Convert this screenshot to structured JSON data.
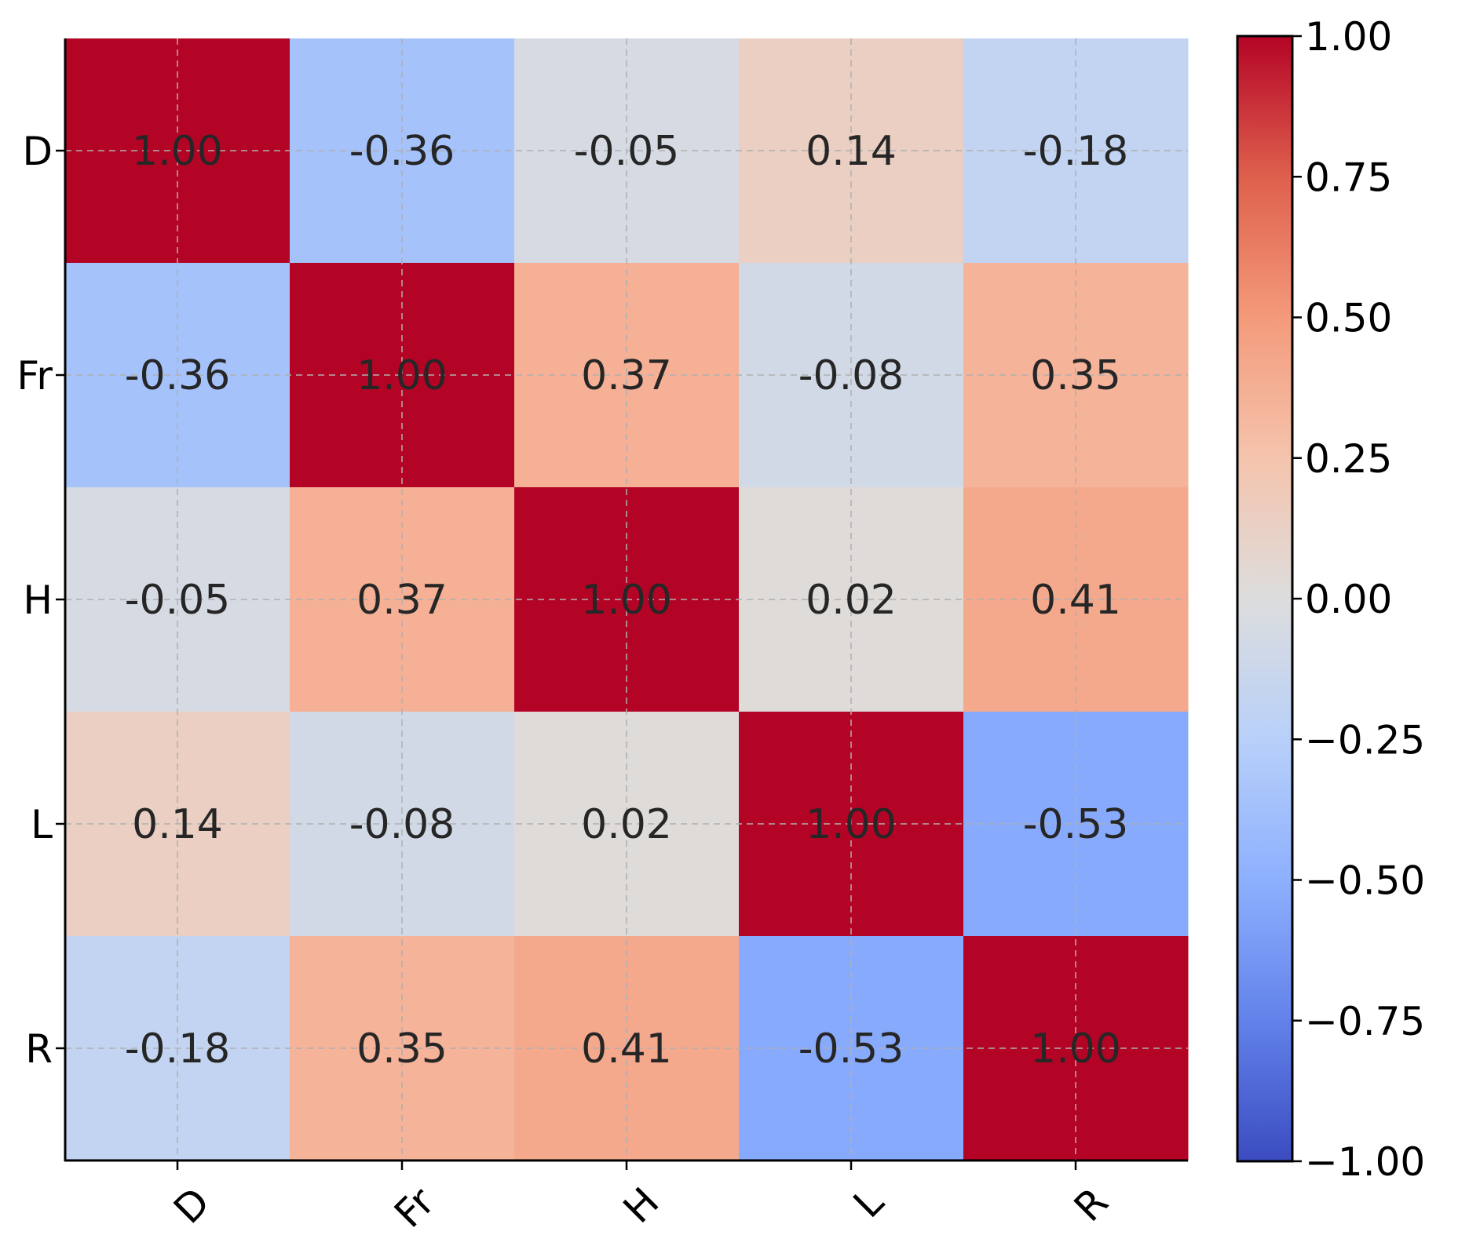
{
  "chart_data": {
    "type": "heatmap",
    "title": "",
    "xlabel": "",
    "ylabel": "",
    "row_labels": [
      "D",
      "Fr",
      "H",
      "L",
      "R"
    ],
    "col_labels": [
      "D",
      "Fr",
      "H",
      "L",
      "R"
    ],
    "values": [
      [
        1.0,
        -0.36,
        -0.05,
        0.14,
        -0.18
      ],
      [
        -0.36,
        1.0,
        0.37,
        -0.08,
        0.35
      ],
      [
        -0.05,
        0.37,
        1.0,
        0.02,
        0.41
      ],
      [
        0.14,
        -0.08,
        0.02,
        1.0,
        -0.53
      ],
      [
        -0.18,
        0.35,
        0.41,
        -0.53,
        1.0
      ]
    ],
    "value_labels": [
      [
        "1.00",
        "-0.36",
        "-0.05",
        "0.14",
        "-0.18"
      ],
      [
        "-0.36",
        "1.00",
        "0.37",
        "-0.08",
        "0.35"
      ],
      [
        "-0.05",
        "0.37",
        "1.00",
        "0.02",
        "0.41"
      ],
      [
        "0.14",
        "-0.08",
        "0.02",
        "1.00",
        "-0.53"
      ],
      [
        "-0.18",
        "0.35",
        "0.41",
        "-0.53",
        "1.00"
      ]
    ],
    "colormap": "coolwarm",
    "color_range": [
      -1.0,
      1.0
    ],
    "colorbar_ticks": [
      1.0,
      0.75,
      0.5,
      0.25,
      0.0,
      -0.25,
      -0.5,
      -0.75,
      -1.0
    ],
    "colorbar_tick_labels": [
      "1.00",
      "0.75",
      "0.50",
      "0.25",
      "0.00",
      "−0.25",
      "−0.50",
      "−0.75",
      "−1.00"
    ],
    "grid": true,
    "colors": {
      "neg_end": "#3b4cc0",
      "mid": "#dddddd",
      "pos_end": "#b40426",
      "annotation_text": "#262626",
      "grid_line": "#b0b0b0"
    }
  }
}
